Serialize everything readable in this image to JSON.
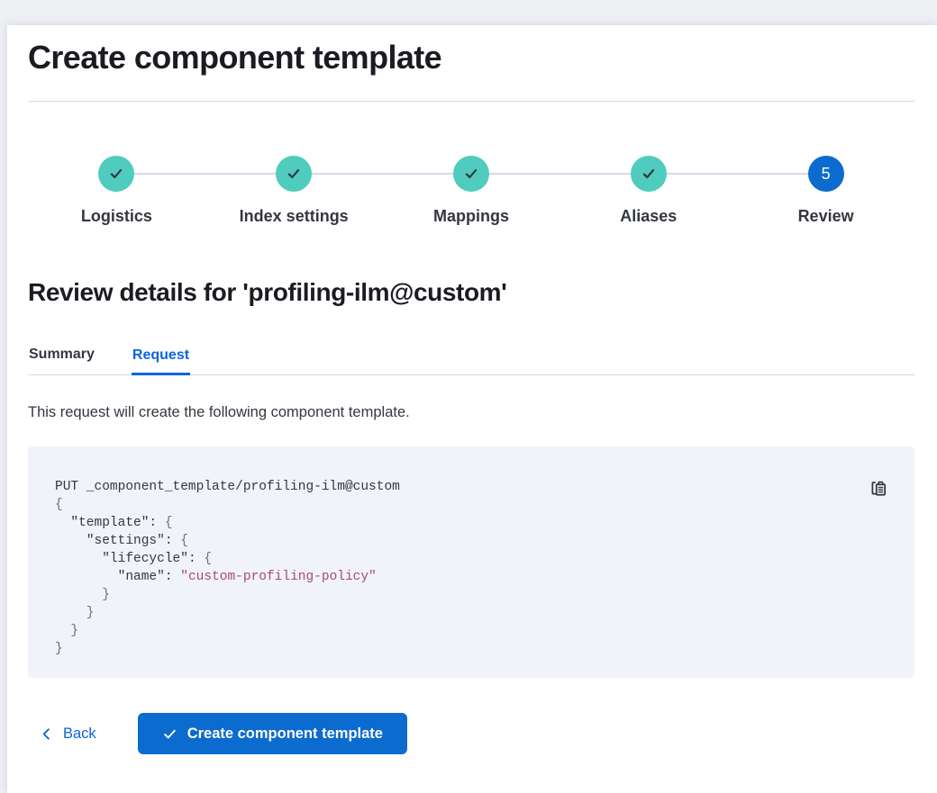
{
  "page": {
    "title": "Create component template"
  },
  "stepper": {
    "steps": [
      {
        "label": "Logistics",
        "status": "complete",
        "icon": "check-icon"
      },
      {
        "label": "Index settings",
        "status": "complete",
        "icon": "check-icon"
      },
      {
        "label": "Mappings",
        "status": "complete",
        "icon": "check-icon"
      },
      {
        "label": "Aliases",
        "status": "complete",
        "icon": "check-icon"
      },
      {
        "label": "Review",
        "status": "current",
        "number": "5"
      }
    ]
  },
  "review": {
    "heading": "Review details for 'profiling-ilm@custom'",
    "tabs": [
      {
        "label": "Summary",
        "active": false
      },
      {
        "label": "Request",
        "active": true
      }
    ],
    "description": "This request will create the following component template."
  },
  "code_block": {
    "copy_icon": "copy-clipboard-icon",
    "lines": [
      [
        [
          "plain",
          "PUT _component_template/profiling-ilm@custom"
        ]
      ],
      [
        [
          "punct",
          "{"
        ]
      ],
      [
        [
          "plain",
          "  "
        ],
        [
          "key",
          "\"template\""
        ],
        [
          "plain",
          ": "
        ],
        [
          "punct",
          "{"
        ]
      ],
      [
        [
          "plain",
          "    "
        ],
        [
          "key",
          "\"settings\""
        ],
        [
          "plain",
          ": "
        ],
        [
          "punct",
          "{"
        ]
      ],
      [
        [
          "plain",
          "      "
        ],
        [
          "key",
          "\"lifecycle\""
        ],
        [
          "plain",
          ": "
        ],
        [
          "punct",
          "{"
        ]
      ],
      [
        [
          "plain",
          "        "
        ],
        [
          "key",
          "\"name\""
        ],
        [
          "plain",
          ": "
        ],
        [
          "string",
          "\"custom-profiling-policy\""
        ]
      ],
      [
        [
          "punct",
          "      }"
        ]
      ],
      [
        [
          "punct",
          "    }"
        ]
      ],
      [
        [
          "punct",
          "  }"
        ]
      ],
      [
        [
          "punct",
          "}"
        ]
      ]
    ]
  },
  "footer": {
    "back_label": "Back",
    "back_icon": "chevron-left-icon",
    "submit_label": "Create component template",
    "submit_icon": "check-icon"
  },
  "colors": {
    "accent_teal": "#4FCCBD",
    "step_current_blue": "#0B6BCE",
    "link_blue": "#0B64DD",
    "button_blue": "#0C6BCE",
    "code_bg": "#F0F3FA",
    "code_string": "#AA4B6E",
    "divider": "#D3DAE6",
    "text_dark": "#343741",
    "heading_dark": "#1A1C21"
  }
}
